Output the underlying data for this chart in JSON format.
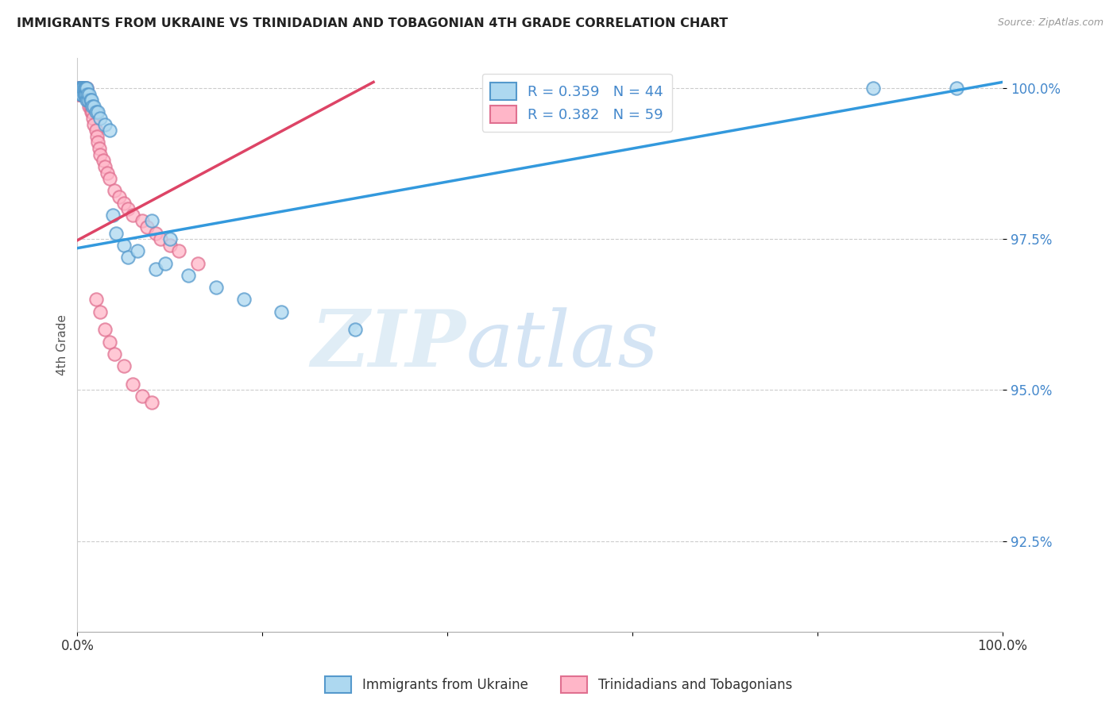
{
  "title": "IMMIGRANTS FROM UKRAINE VS TRINIDADIAN AND TOBAGONIAN 4TH GRADE CORRELATION CHART",
  "source": "Source: ZipAtlas.com",
  "ylabel": "4th Grade",
  "legend_blue_label": "R = 0.359   N = 44",
  "legend_pink_label": "R = 0.382   N = 59",
  "legend_bottom_blue": "Immigrants from Ukraine",
  "legend_bottom_pink": "Trinidadians and Tobagonians",
  "blue_face": "#add8f0",
  "blue_edge": "#5599cc",
  "pink_face": "#ffb6c8",
  "pink_edge": "#e07090",
  "blue_line": "#3399dd",
  "pink_line": "#dd4466",
  "label_color": "#4488cc",
  "watermark_zip": "#c8dff0",
  "watermark_atlas": "#a0c4e8",
  "xlim": [
    0.0,
    1.0
  ],
  "ylim": [
    0.91,
    1.005
  ],
  "yticks": [
    0.925,
    0.95,
    0.975,
    1.0
  ],
  "ytick_labels": [
    "92.5%",
    "95.0%",
    "97.5%",
    "100.0%"
  ],
  "blue_line_x": [
    0.0,
    1.0
  ],
  "blue_line_y": [
    0.9735,
    1.001
  ],
  "pink_line_x": [
    0.0,
    0.32
  ],
  "pink_line_y": [
    0.9748,
    1.001
  ],
  "ukraine_x": [
    0.001,
    0.002,
    0.003,
    0.004,
    0.004,
    0.005,
    0.005,
    0.006,
    0.007,
    0.007,
    0.008,
    0.008,
    0.009,
    0.009,
    0.01,
    0.01,
    0.011,
    0.012,
    0.013,
    0.014,
    0.015,
    0.016,
    0.018,
    0.02,
    0.022,
    0.025,
    0.03,
    0.035,
    0.038,
    0.042,
    0.05,
    0.055,
    0.065,
    0.08,
    0.085,
    0.095,
    0.1,
    0.12,
    0.15,
    0.18,
    0.22,
    0.3,
    0.86,
    0.95
  ],
  "ukraine_y": [
    1.0,
    1.0,
    1.0,
    1.0,
    0.999,
    1.0,
    0.999,
    1.0,
    1.0,
    0.999,
    1.0,
    0.999,
    1.0,
    0.999,
    1.0,
    0.998,
    0.999,
    0.998,
    0.999,
    0.998,
    0.998,
    0.997,
    0.997,
    0.996,
    0.996,
    0.995,
    0.994,
    0.993,
    0.979,
    0.976,
    0.974,
    0.972,
    0.973,
    0.978,
    0.97,
    0.971,
    0.975,
    0.969,
    0.967,
    0.965,
    0.963,
    0.96,
    1.0,
    1.0
  ],
  "trini_x": [
    0.001,
    0.001,
    0.002,
    0.002,
    0.003,
    0.003,
    0.003,
    0.004,
    0.004,
    0.005,
    0.005,
    0.005,
    0.006,
    0.006,
    0.007,
    0.007,
    0.008,
    0.008,
    0.009,
    0.01,
    0.01,
    0.011,
    0.012,
    0.013,
    0.014,
    0.015,
    0.016,
    0.017,
    0.018,
    0.02,
    0.021,
    0.022,
    0.024,
    0.025,
    0.028,
    0.03,
    0.032,
    0.035,
    0.04,
    0.045,
    0.05,
    0.055,
    0.06,
    0.07,
    0.075,
    0.085,
    0.09,
    0.1,
    0.11,
    0.13,
    0.02,
    0.025,
    0.03,
    0.035,
    0.04,
    0.05,
    0.06,
    0.07,
    0.08
  ],
  "trini_y": [
    1.0,
    0.999,
    1.0,
    0.999,
    1.0,
    1.0,
    0.999,
    1.0,
    0.999,
    1.0,
    1.0,
    0.999,
    1.0,
    0.999,
    1.0,
    0.999,
    1.0,
    0.999,
    0.999,
    1.0,
    0.999,
    0.998,
    0.998,
    0.997,
    0.997,
    0.996,
    0.996,
    0.995,
    0.994,
    0.993,
    0.992,
    0.991,
    0.99,
    0.989,
    0.988,
    0.987,
    0.986,
    0.985,
    0.983,
    0.982,
    0.981,
    0.98,
    0.979,
    0.978,
    0.977,
    0.976,
    0.975,
    0.974,
    0.973,
    0.971,
    0.965,
    0.963,
    0.96,
    0.958,
    0.956,
    0.954,
    0.951,
    0.949,
    0.948
  ]
}
